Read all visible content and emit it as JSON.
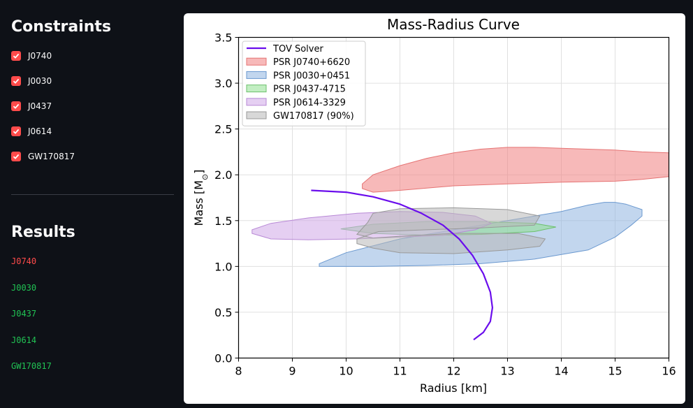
{
  "sidebar": {
    "constraints_heading": "Constraints",
    "checkboxes": [
      {
        "label": "J0740",
        "checked": true
      },
      {
        "label": "J0030",
        "checked": true
      },
      {
        "label": "J0437",
        "checked": true
      },
      {
        "label": "J0614",
        "checked": true
      },
      {
        "label": "GW170817",
        "checked": true
      }
    ],
    "checkbox_color": "#ff4b4b",
    "results_heading": "Results",
    "results": [
      {
        "label": "J0740",
        "status": "fail",
        "color": "#ff4b4b"
      },
      {
        "label": "J0030",
        "status": "pass",
        "color": "#21c354"
      },
      {
        "label": "J0437",
        "status": "pass",
        "color": "#21c354"
      },
      {
        "label": "J0614",
        "status": "pass",
        "color": "#21c354"
      },
      {
        "label": "GW170817",
        "status": "pass",
        "color": "#21c354"
      }
    ]
  },
  "chart_data": {
    "type": "line",
    "title": "Mass-Radius Curve",
    "xlabel": "Radius [km]",
    "ylabel": "Mass [M",
    "ylabel_sub": "⊙",
    "ylabel_close": "]",
    "xlim": [
      8,
      16
    ],
    "ylim": [
      0,
      3.5
    ],
    "xticks": [
      8,
      9,
      10,
      11,
      12,
      13,
      14,
      15,
      16
    ],
    "yticks": [
      0.0,
      0.5,
      1.0,
      1.5,
      2.0,
      2.5,
      3.0,
      3.5
    ],
    "ytick_labels": [
      "0.0",
      "0.5",
      "1.0",
      "1.5",
      "2.0",
      "2.5",
      "3.0",
      "3.5"
    ],
    "grid": true,
    "legend_position": "top-left",
    "series": [
      {
        "name": "TOV Solver",
        "kind": "line",
        "color": "#6a0dec",
        "x": [
          9.35,
          10.0,
          10.5,
          11.0,
          11.4,
          11.8,
          12.1,
          12.35,
          12.55,
          12.68,
          12.72,
          12.68,
          12.55,
          12.37
        ],
        "y": [
          1.83,
          1.81,
          1.76,
          1.68,
          1.58,
          1.45,
          1.3,
          1.12,
          0.92,
          0.72,
          0.55,
          0.4,
          0.28,
          0.2
        ]
      }
    ],
    "regions": [
      {
        "name": "PSR J0740+6620",
        "fill": "#f08080",
        "edge": "#e57373",
        "x": [
          10.3,
          10.5,
          11.0,
          11.5,
          12.0,
          12.5,
          13.0,
          13.5,
          14.0,
          15.0,
          15.5,
          16.0,
          16.0,
          15.5,
          15.0,
          14.0,
          13.0,
          12.0,
          11.0,
          10.5,
          10.3
        ],
        "y": [
          1.9,
          2.0,
          2.1,
          2.18,
          2.24,
          2.28,
          2.3,
          2.3,
          2.29,
          2.27,
          2.25,
          2.24,
          1.98,
          1.95,
          1.93,
          1.92,
          1.9,
          1.88,
          1.83,
          1.81,
          1.85
        ]
      },
      {
        "name": "PSR J0030+0451",
        "fill": "#8fb4e0",
        "edge": "#6a98cf",
        "x": [
          9.5,
          10.5,
          11.5,
          12.5,
          13.5,
          14.5,
          15.0,
          15.3,
          15.5,
          15.5,
          15.2,
          15.0,
          14.8,
          14.5,
          14.0,
          13.0,
          12.0,
          11.0,
          10.0,
          9.5
        ],
        "y": [
          1.0,
          1.0,
          1.01,
          1.03,
          1.08,
          1.18,
          1.32,
          1.45,
          1.55,
          1.62,
          1.68,
          1.7,
          1.7,
          1.67,
          1.6,
          1.5,
          1.4,
          1.3,
          1.15,
          1.03
        ]
      },
      {
        "name": "PSR J0437-4715",
        "fill": "#90e090",
        "edge": "#6cc06c",
        "x": [
          9.9,
          10.5,
          11.5,
          12.5,
          13.5,
          13.9,
          13.5,
          12.5,
          11.5,
          10.5,
          9.9
        ],
        "y": [
          1.41,
          1.36,
          1.34,
          1.35,
          1.38,
          1.43,
          1.47,
          1.49,
          1.49,
          1.46,
          1.41
        ]
      },
      {
        "name": "PSR J0614-3329",
        "fill": "#d0a8e8",
        "edge": "#b889d6",
        "x": [
          8.25,
          8.6,
          9.3,
          10.2,
          11.0,
          11.8,
          12.4,
          12.7,
          12.4,
          11.8,
          11.0,
          10.2,
          9.3,
          8.6,
          8.25
        ],
        "y": [
          1.36,
          1.3,
          1.29,
          1.3,
          1.32,
          1.34,
          1.4,
          1.47,
          1.55,
          1.59,
          1.6,
          1.58,
          1.53,
          1.47,
          1.4
        ]
      },
      {
        "name": "GW170817 (90%)",
        "fill": "#b8b8b8",
        "edge": "#999999",
        "x": [
          10.2,
          10.5,
          11.0,
          12.0,
          13.0,
          13.6,
          13.7,
          13.2,
          12.0,
          11.0,
          10.5,
          10.2,
          10.4,
          10.5,
          11.0,
          12.0,
          13.0,
          13.6,
          13.5,
          12.5,
          11.5,
          10.6,
          10.2
        ],
        "y": [
          1.25,
          1.2,
          1.15,
          1.14,
          1.18,
          1.22,
          1.3,
          1.36,
          1.36,
          1.33,
          1.31,
          1.35,
          1.48,
          1.58,
          1.63,
          1.64,
          1.62,
          1.55,
          1.45,
          1.42,
          1.4,
          1.38,
          1.3
        ]
      }
    ]
  }
}
